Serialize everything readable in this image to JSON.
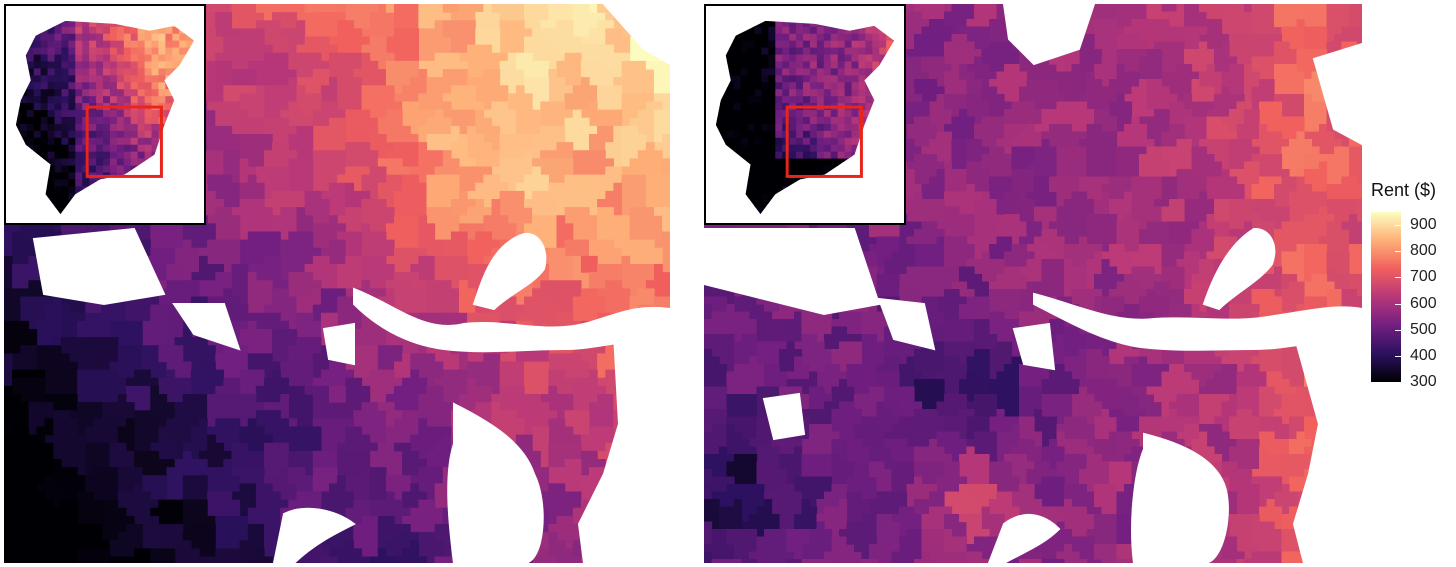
{
  "legend": {
    "title": "Rent ($)",
    "ticks": [
      {
        "label": "900",
        "value": 900
      },
      {
        "label": "800",
        "value": 800
      },
      {
        "label": "700",
        "value": 700
      },
      {
        "label": "600",
        "value": 600
      },
      {
        "label": "500",
        "value": 500
      },
      {
        "label": "400",
        "value": 400
      },
      {
        "label": "300",
        "value": 300
      }
    ],
    "range": [
      300,
      950
    ],
    "colors": [
      "#000004",
      "#2c115f",
      "#721f81",
      "#b73779",
      "#f1605d",
      "#feb078",
      "#fcfdbf"
    ]
  },
  "colors": {
    "water": "#ffffff",
    "inset_box": "#e8251b",
    "frame": "#000000"
  }
}
